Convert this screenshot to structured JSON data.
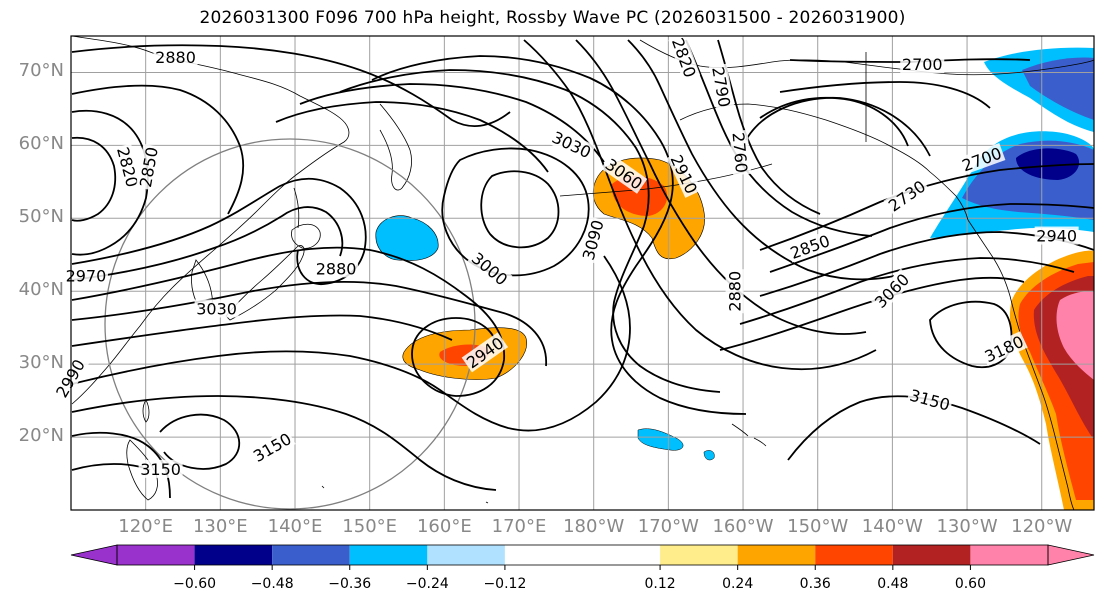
{
  "map": {
    "title": "2026031300 F096 700 hPa height, Rossby Wave PC (2026031500 - 2026031900)",
    "lat_labels": [
      "70°N",
      "60°N",
      "50°N",
      "40°N",
      "30°N",
      "20°N"
    ],
    "lat_values": [
      70,
      60,
      50,
      40,
      30,
      20
    ],
    "lon_labels": [
      "120°E",
      "130°E",
      "140°E",
      "150°E",
      "160°E",
      "170°E",
      "180°W",
      "170°W",
      "160°W",
      "150°W",
      "140°W",
      "130°W",
      "120°W"
    ],
    "lon_values": [
      120,
      130,
      140,
      150,
      160,
      170,
      180,
      190,
      200,
      210,
      220,
      230,
      240
    ],
    "extent": {
      "lon_min": 110,
      "lon_max": 247,
      "lat_min": 10,
      "lat_max": 75
    },
    "contour_labels": [
      {
        "text": "2880",
        "lon": 124,
        "lat": 72
      },
      {
        "text": "2820",
        "lon": 117.5,
        "lat": 57,
        "rotate": 75
      },
      {
        "text": "2850",
        "lon": 120.5,
        "lat": 57,
        "rotate": -80
      },
      {
        "text": "2970",
        "lon": 112,
        "lat": 42
      },
      {
        "text": "2880",
        "lon": 145.5,
        "lat": 43
      },
      {
        "text": "3030",
        "lon": 129.5,
        "lat": 37.5
      },
      {
        "text": "3000",
        "lon": 166,
        "lat": 43,
        "rotate": 40
      },
      {
        "text": "2940",
        "lon": 165.5,
        "lat": 31.5,
        "rotate": -35
      },
      {
        "text": "3150",
        "lon": 137,
        "lat": 18.5,
        "rotate": -30
      },
      {
        "text": "3150",
        "lon": 122,
        "lat": 15.5
      },
      {
        "text": "2990",
        "lon": 110,
        "lat": 28,
        "rotate": -60
      },
      {
        "text": "3030",
        "lon": 177,
        "lat": 60,
        "rotate": 25
      },
      {
        "text": "3060",
        "lon": 184,
        "lat": 56,
        "rotate": 35
      },
      {
        "text": "3090",
        "lon": 180,
        "lat": 47,
        "rotate": -75
      },
      {
        "text": "2910",
        "lon": 192,
        "lat": 56,
        "rotate": 65
      },
      {
        "text": "2820",
        "lon": 192,
        "lat": 72,
        "rotate": 70
      },
      {
        "text": "2790",
        "lon": 197,
        "lat": 68,
        "rotate": 80
      },
      {
        "text": "2760",
        "lon": 199.5,
        "lat": 59,
        "rotate": 85
      },
      {
        "text": "2880",
        "lon": 199,
        "lat": 40,
        "rotate": -90
      },
      {
        "text": "2700",
        "lon": 224,
        "lat": 71
      },
      {
        "text": "2700",
        "lon": 232,
        "lat": 58,
        "rotate": -20
      },
      {
        "text": "2730",
        "lon": 222,
        "lat": 53,
        "rotate": -35
      },
      {
        "text": "2850",
        "lon": 209,
        "lat": 46,
        "rotate": -20
      },
      {
        "text": "3060",
        "lon": 220,
        "lat": 40,
        "rotate": -45
      },
      {
        "text": "3180",
        "lon": 235,
        "lat": 32,
        "rotate": -25
      },
      {
        "text": "3150",
        "lon": 225,
        "lat": 25,
        "rotate": 15
      },
      {
        "text": "2940",
        "lon": 242,
        "lat": 47.5
      }
    ]
  },
  "colorbar": {
    "tick_labels": [
      "−0.60",
      "−0.48",
      "−0.36",
      "−0.24",
      "−0.12",
      "0.12",
      "0.24",
      "0.36",
      "0.48",
      "0.60"
    ],
    "tick_values": [
      -0.6,
      -0.48,
      -0.36,
      -0.24,
      -0.12,
      0.12,
      0.24,
      0.36,
      0.48,
      0.6
    ],
    "colors": [
      "#9932cc",
      "#00008b",
      "#3a5fcd",
      "#00bfff",
      "#b0e2ff",
      "#ffffff",
      "#ffec8b",
      "#ffa500",
      "#ff4500",
      "#b22222",
      "#ff82ab"
    ],
    "extend": "both"
  }
}
